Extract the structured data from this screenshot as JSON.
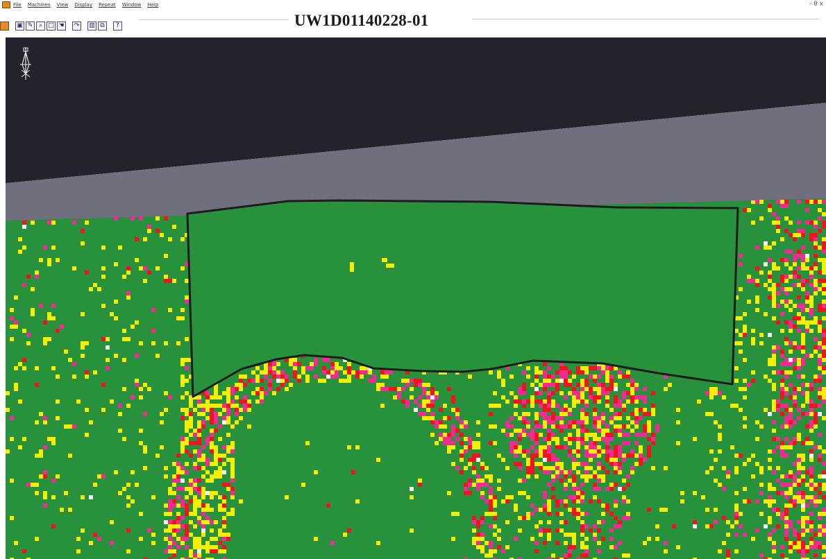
{
  "window": {
    "title": "UW1D01140228-01",
    "controls": "- θ x"
  },
  "menubar": {
    "items": [
      {
        "label": "File",
        "name": "menu-file"
      },
      {
        "label": "Machines",
        "name": "menu-machines"
      },
      {
        "label": "View",
        "name": "menu-view"
      },
      {
        "label": "Display",
        "name": "menu-display"
      },
      {
        "label": "Repeat",
        "name": "menu-repeat"
      },
      {
        "label": "Window",
        "name": "menu-window"
      },
      {
        "label": "Help",
        "name": "menu-help"
      }
    ]
  },
  "toolbar": {
    "buttons": [
      {
        "icon": "app-orange-icon",
        "glyph": ""
      },
      {
        "icon": "select-icon",
        "glyph": "▣"
      },
      {
        "icon": "edit-icon",
        "glyph": "✎"
      },
      {
        "icon": "zoom-in-icon",
        "glyph": "⌕"
      },
      {
        "icon": "zoom-window-icon",
        "glyph": "□"
      },
      {
        "icon": "pan-icon",
        "glyph": "☚"
      },
      {
        "icon": "rotate-icon",
        "glyph": "↷"
      },
      {
        "icon": "columns-icon",
        "glyph": "▥"
      },
      {
        "icon": "copy-icon",
        "glyph": "⧉"
      },
      {
        "icon": "help-pointer-icon",
        "glyph": "?"
      }
    ]
  },
  "scene": {
    "colors": {
      "background_dark": "#23232d",
      "background_gray": "#6f6f7d",
      "surface_green": "#28913b",
      "marker_yellow": "#f4f000",
      "marker_magenta": "#ee2c93",
      "marker_red": "#ee1420",
      "marker_white": "#f4f4f4",
      "outline": "#1c1c1c"
    },
    "compass_icon": "compass-rose-icon"
  }
}
